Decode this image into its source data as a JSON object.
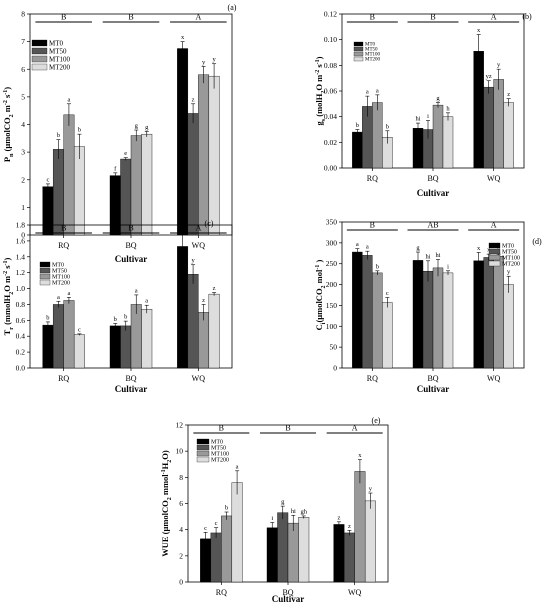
{
  "legend_labels": [
    "MT0",
    "MT50",
    "MT100",
    "MT200"
  ],
  "colors": [
    "#000000",
    "#555555",
    "#999999",
    "#dddddd"
  ],
  "chart_data": [
    {
      "type": "bar",
      "panel": "(a)",
      "categories": [
        "RQ",
        "BQ",
        "WQ"
      ],
      "xlabel": "Cultivar",
      "ylabel": [
        "P",
        "n",
        " (μmolCO",
        "2",
        " m",
        "-2",
        " s",
        "-1",
        ")"
      ],
      "ylim": [
        0,
        8
      ],
      "yticks": [
        0,
        1,
        2,
        3,
        4,
        5,
        6,
        7,
        8
      ],
      "group_letters": [
        "B",
        "B",
        "A"
      ],
      "series": [
        {
          "name": "MT0",
          "values": [
            1.75,
            2.15,
            6.75
          ],
          "errors": [
            0.1,
            0.1,
            0.25
          ],
          "letters": [
            "c",
            "f",
            "x"
          ]
        },
        {
          "name": "MT50",
          "values": [
            3.1,
            2.75,
            4.4
          ],
          "errors": [
            0.35,
            0.05,
            0.35
          ],
          "letters": [
            "b",
            "e",
            "z"
          ]
        },
        {
          "name": "MT100",
          "values": [
            4.35,
            3.6,
            5.8
          ],
          "errors": [
            0.4,
            0.2,
            0.3
          ],
          "letters": [
            "a",
            "g",
            "y"
          ]
        },
        {
          "name": "MT200",
          "values": [
            3.2,
            3.65,
            5.75
          ],
          "errors": [
            0.45,
            0.1,
            0.45
          ],
          "letters": [
            "b",
            "g",
            "y"
          ]
        }
      ]
    },
    {
      "type": "bar",
      "panel": "(b)",
      "categories": [
        "RQ",
        "BQ",
        "WQ"
      ],
      "xlabel": "Cultivar",
      "ylabel": [
        "g",
        "s",
        " (molH",
        "2",
        "O m",
        "-2",
        " s",
        "-1",
        ")"
      ],
      "ylim": [
        0,
        0.12
      ],
      "yticks": [
        "0.00",
        "0.02",
        "0.04",
        "0.06",
        "0.08",
        "0.10",
        "0.12"
      ],
      "group_letters": [
        "B",
        "B",
        "A"
      ],
      "series": [
        {
          "name": "MT0",
          "values": [
            0.028,
            0.031,
            0.091
          ],
          "errors": [
            0.002,
            0.004,
            0.013
          ],
          "letters": [
            "b",
            "hi",
            "x"
          ]
        },
        {
          "name": "MT50",
          "values": [
            0.048,
            0.03,
            0.063
          ],
          "errors": [
            0.008,
            0.007,
            0.005
          ],
          "letters": [
            "a",
            "i",
            "yz"
          ]
        },
        {
          "name": "MT100",
          "values": [
            0.051,
            0.049,
            0.069
          ],
          "errors": [
            0.006,
            0.002,
            0.008
          ],
          "letters": [
            "a",
            "g",
            "y"
          ]
        },
        {
          "name": "MT200",
          "values": [
            0.024,
            0.04,
            0.051
          ],
          "errors": [
            0.005,
            0.003,
            0.003
          ],
          "letters": [
            "b",
            "h",
            "z"
          ]
        }
      ]
    },
    {
      "type": "bar",
      "panel": "(c)",
      "categories": [
        "RQ",
        "BQ",
        "WQ"
      ],
      "xlabel": "Cultivar",
      "ylabel": [
        "T",
        "r",
        " (mmolH",
        "2",
        "O m",
        "-2",
        " s",
        "-1",
        ")"
      ],
      "ylim": [
        0,
        1.8
      ],
      "yticks": [
        "0.0",
        "0.2",
        "0.4",
        "0.6",
        "0.8",
        "1.0",
        "1.2",
        "1.4",
        "1.6",
        "1.8"
      ],
      "group_letters": [
        "B",
        "B",
        "A"
      ],
      "series": [
        {
          "name": "MT0",
          "values": [
            0.54,
            0.53,
            1.53
          ],
          "errors": [
            0.04,
            0.03,
            0.15
          ],
          "letters": [
            "b",
            "b",
            "x"
          ]
        },
        {
          "name": "MT50",
          "values": [
            0.8,
            0.53,
            1.18
          ],
          "errors": [
            0.04,
            0.06,
            0.12
          ],
          "letters": [
            "a",
            "b",
            "y"
          ]
        },
        {
          "name": "MT100",
          "values": [
            0.85,
            0.8,
            0.7
          ],
          "errors": [
            0.04,
            0.12,
            0.1
          ],
          "letters": [
            "a",
            "a",
            "z"
          ]
        },
        {
          "name": "MT200",
          "values": [
            0.42,
            0.74,
            0.93
          ],
          "errors": [
            0.01,
            0.05,
            0.02
          ],
          "letters": [
            "c",
            "a",
            "z"
          ]
        }
      ]
    },
    {
      "type": "bar",
      "panel": "(d)",
      "categories": [
        "RQ",
        "BQ",
        "WQ"
      ],
      "xlabel": "Cultivar",
      "ylabel": [
        "C",
        "i",
        "(μmolCO",
        "2",
        " mol",
        "-1",
        " )",
        "",
        ""
      ],
      "ylim": [
        0,
        350
      ],
      "yticks": [
        0,
        50,
        100,
        150,
        200,
        250,
        300,
        350
      ],
      "group_letters": [
        "B",
        "AB",
        "A"
      ],
      "series": [
        {
          "name": "MT0",
          "values": [
            278,
            258,
            257
          ],
          "errors": [
            8,
            20,
            20
          ],
          "letters": [
            "a",
            "g",
            "x"
          ]
        },
        {
          "name": "MT50",
          "values": [
            270,
            232,
            265
          ],
          "errors": [
            10,
            25,
            8
          ],
          "letters": [
            "a",
            "hi",
            "x"
          ]
        },
        {
          "name": "MT100",
          "values": [
            228,
            240,
            268
          ],
          "errors": [
            5,
            20,
            5
          ],
          "letters": [
            "b",
            "hi",
            "x"
          ]
        },
        {
          "name": "MT200",
          "values": [
            157,
            228,
            200
          ],
          "errors": [
            12,
            5,
            20
          ],
          "letters": [
            "c",
            "i",
            "y"
          ]
        }
      ]
    },
    {
      "type": "bar",
      "panel": "(e)",
      "categories": [
        "RQ",
        "BQ",
        "WQ"
      ],
      "xlabel": "Cultivar",
      "ylabel": [
        "WUE (μmolCO",
        "2",
        " mmol",
        "-1",
        "H",
        "2",
        "O)",
        "",
        ""
      ],
      "ylim": [
        0,
        12
      ],
      "yticks": [
        0,
        2,
        4,
        6,
        8,
        10,
        12
      ],
      "group_letters": [
        "B",
        "B",
        "A"
      ],
      "series": [
        {
          "name": "MT0",
          "values": [
            3.3,
            4.15,
            4.4
          ],
          "errors": [
            0.5,
            0.4,
            0.2
          ],
          "letters": [
            "c",
            "i",
            "z"
          ]
        },
        {
          "name": "MT50",
          "values": [
            3.75,
            5.3,
            3.75
          ],
          "errors": [
            0.4,
            0.5,
            0.2
          ],
          "letters": [
            "c",
            "g",
            "z"
          ]
        },
        {
          "name": "MT100",
          "values": [
            5.05,
            4.5,
            8.45
          ],
          "errors": [
            0.3,
            0.6,
            0.9
          ],
          "letters": [
            "b",
            "hi",
            "x"
          ]
        },
        {
          "name": "MT200",
          "values": [
            7.6,
            4.95,
            6.2
          ],
          "errors": [
            0.9,
            0.1,
            0.6
          ],
          "letters": [
            "a",
            "gh",
            "y"
          ]
        }
      ]
    }
  ]
}
